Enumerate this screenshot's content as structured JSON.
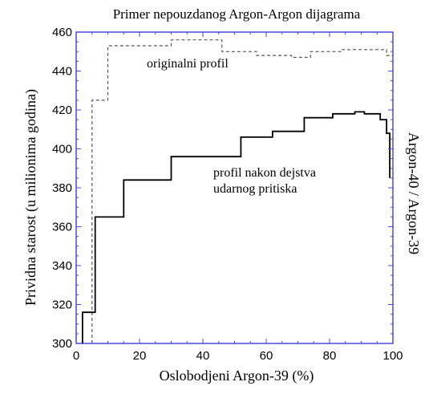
{
  "chart_data": {
    "type": "line",
    "title": "Primer nepouzdanog Argon-Argon dijagrama",
    "xlabel": "Oslobodjeni Argon-39 (%)",
    "ylabel": "Prividna starost (u milionima godina)",
    "y2label": "Argon-40 / Argon-39",
    "xlim": [
      0,
      100
    ],
    "ylim": [
      300,
      460
    ],
    "xticks": [
      0,
      20,
      40,
      60,
      80,
      100
    ],
    "yticks": [
      300,
      320,
      340,
      360,
      380,
      400,
      420,
      440,
      460
    ],
    "grid": false,
    "series": [
      {
        "name": "originalni profil",
        "style": "dashed",
        "color": "#555555",
        "x": [
          5,
          5,
          10,
          10,
          30,
          30,
          46,
          46,
          57,
          57,
          68,
          68,
          74,
          74,
          84,
          84,
          98,
          98,
          100
        ],
        "y": [
          300,
          425,
          425,
          453,
          453,
          456,
          456,
          450,
          450,
          448,
          448,
          447,
          447,
          450,
          450,
          451,
          451,
          448,
          448
        ]
      },
      {
        "name": "profil nakon dejstva udarnog pritiska",
        "style": "solid",
        "color": "#000000",
        "x": [
          2,
          2,
          6,
          6,
          15,
          15,
          30,
          30,
          52,
          52,
          62,
          62,
          72,
          72,
          81,
          81,
          88,
          88,
          91,
          91,
          96,
          96,
          98,
          98,
          99,
          99
        ],
        "y": [
          300,
          316,
          316,
          365,
          365,
          384,
          384,
          396,
          396,
          406,
          406,
          409,
          409,
          416,
          416,
          418,
          418,
          419,
          419,
          418,
          418,
          415,
          415,
          408,
          408,
          385
        ]
      }
    ],
    "annotations": [
      {
        "id": "orig",
        "lines": [
          "originalni profil"
        ]
      },
      {
        "id": "shock",
        "lines": [
          "profil nakon dejstva",
          "udarnog pritiska"
        ]
      }
    ]
  },
  "colors": {
    "axis": "#4a4ad8",
    "text": "#000000"
  }
}
